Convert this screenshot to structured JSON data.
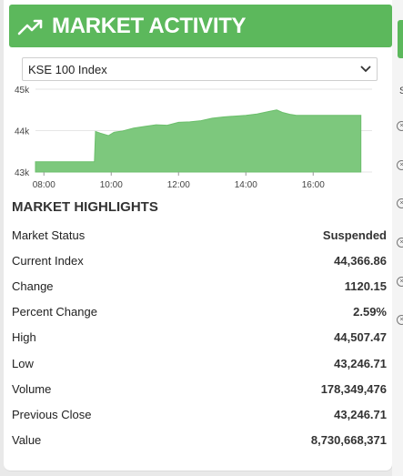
{
  "header": {
    "title": "MARKET ACTIVITY",
    "icon": "trending-up-icon",
    "accent": "#5cb85c"
  },
  "index_select": {
    "selected": "KSE 100 Index"
  },
  "chart_data": {
    "type": "area",
    "title": "",
    "xlabel": "",
    "ylabel": "",
    "y_ticks": [
      "45k",
      "44k",
      "43k"
    ],
    "ylim": [
      43000,
      45000
    ],
    "x_ticks": [
      "08:00",
      "10:00",
      "12:00",
      "14:00",
      "16:00"
    ],
    "xlim": [
      "07:45",
      "17:45"
    ],
    "color": "#7dc87d",
    "series": [
      {
        "x": [
          "07:45",
          "09:30",
          "09:32",
          "09:40",
          "09:55",
          "10:05",
          "10:20",
          "10:40",
          "11:00",
          "11:20",
          "11:40",
          "12:00",
          "12:20",
          "12:40",
          "13:00",
          "13:20",
          "13:40",
          "14:00",
          "14:20",
          "14:40",
          "14:55",
          "15:05",
          "15:20",
          "15:30",
          "15:40",
          "16:10",
          "17:00",
          "17:25"
        ],
        "y": [
          43246,
          43246,
          43980,
          43940,
          43880,
          43960,
          43990,
          44060,
          44100,
          44140,
          44130,
          44200,
          44210,
          44240,
          44300,
          44330,
          44350,
          44370,
          44400,
          44460,
          44500,
          44440,
          44390,
          44370,
          44367,
          44367,
          44367,
          44367
        ]
      }
    ]
  },
  "highlights": {
    "title": "MARKET HIGHLIGHTS",
    "rows": [
      {
        "label": "Market Status",
        "value": "Suspended"
      },
      {
        "label": "Current Index",
        "value": "44,366.86"
      },
      {
        "label": "Change",
        "value": "1120.15"
      },
      {
        "label": "Percent Change",
        "value": "2.59%"
      },
      {
        "label": "High",
        "value": "44,507.47"
      },
      {
        "label": "Low",
        "value": "43,246.71"
      },
      {
        "label": "Volume",
        "value": "178,349,476"
      },
      {
        "label": "Previous Close",
        "value": "43,246.71"
      },
      {
        "label": "Value",
        "value": "8,730,668,371"
      }
    ]
  },
  "side_strip": {
    "letter": "S"
  }
}
